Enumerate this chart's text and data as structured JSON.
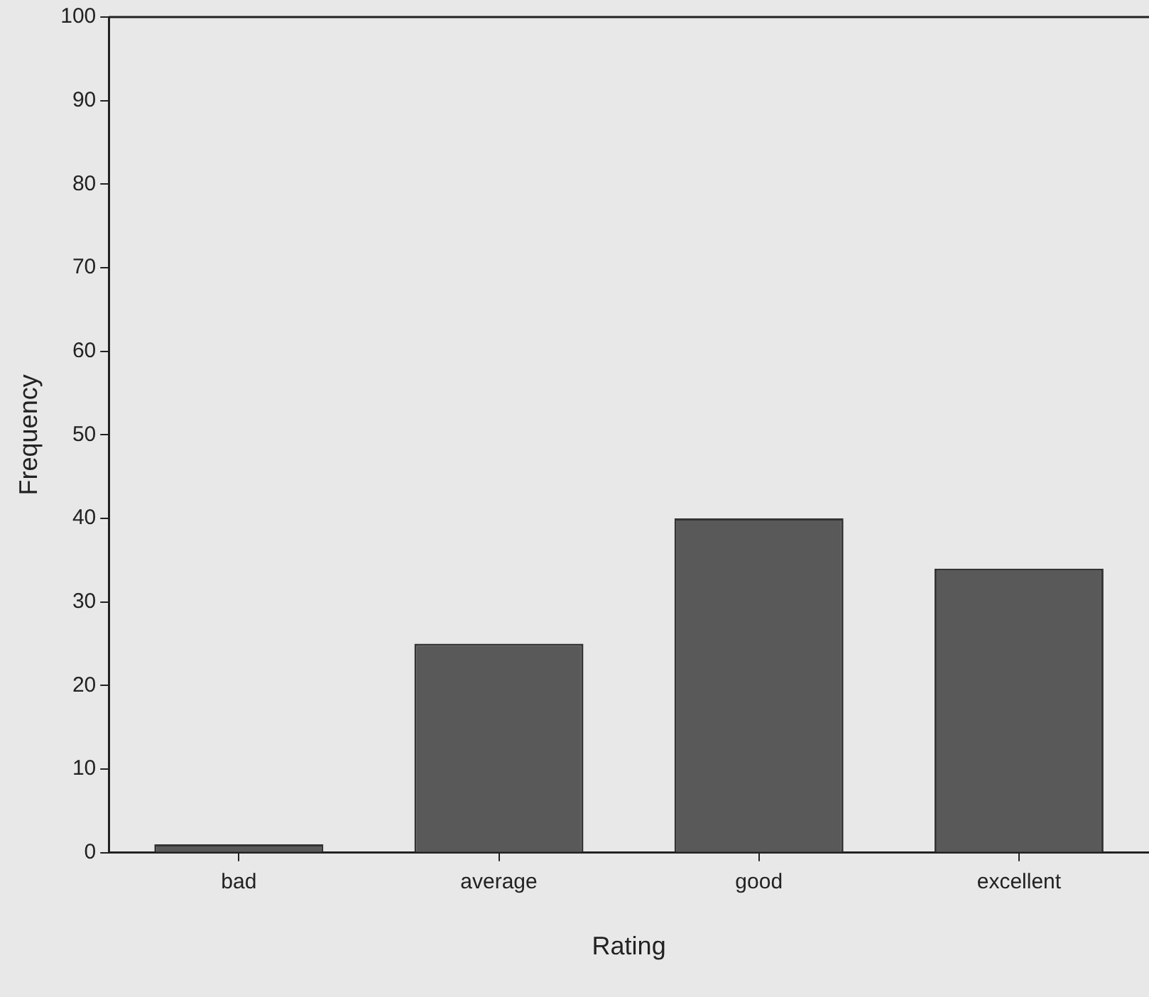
{
  "chart_data": {
    "type": "bar",
    "xlabel": "Rating",
    "ylabel": "Frequency",
    "categories": [
      "bad",
      "average",
      "good",
      "excellent"
    ],
    "values": [
      1,
      25,
      40,
      34
    ],
    "color": "#595959",
    "ylim": [
      0,
      100
    ],
    "yticks": [
      0,
      10,
      20,
      30,
      40,
      50,
      60,
      70,
      80,
      90,
      100
    ],
    "grid": false,
    "legend": false
  }
}
